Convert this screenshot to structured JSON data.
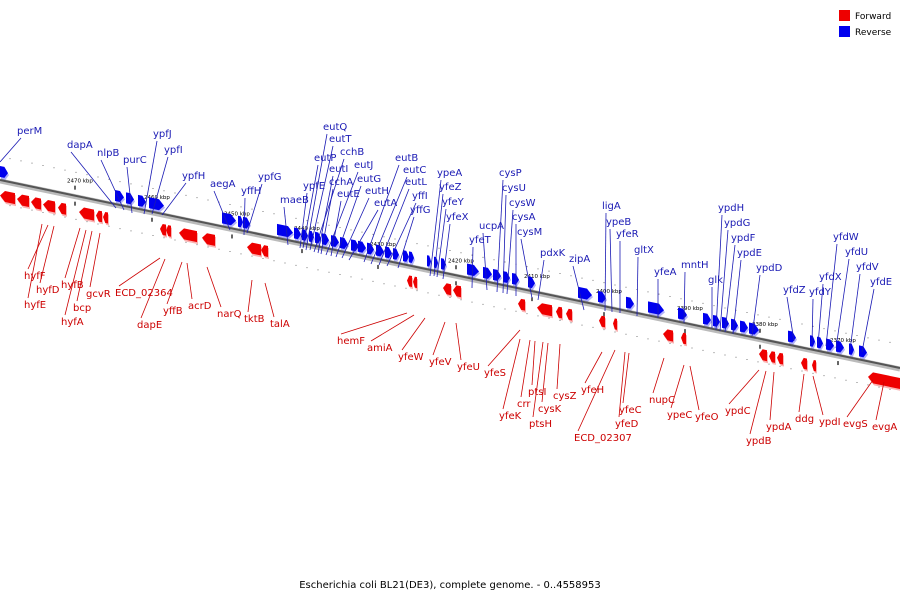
{
  "caption": "Escherichia coli BL21(DE3), complete genome. - 0..4558953",
  "legend": [
    {
      "label": "Forward",
      "color": "#ee0000"
    },
    {
      "label": "Reverse",
      "color": "#0000ee"
    }
  ],
  "colors": {
    "forward": "#ee0000",
    "reverse": "#0000ee",
    "forward_label": "#cc0000",
    "reverse_label": "#1a1ab4"
  },
  "chart_data": {
    "type": "genome-map",
    "ticks": [
      "2470 kbp",
      "2460 kbp",
      "2450 kbp",
      "2440 kbp",
      "2430 kbp",
      "2420 kbp",
      "2410 kbp",
      "2400 kbp",
      "2390 kbp",
      "2380 kbp",
      "2370 kbp"
    ],
    "reverse_genes": [
      "perM",
      "dapA",
      "nlpB",
      "purC",
      "ypfJ",
      "ypfI",
      "ypfH",
      "aegA",
      "yffH",
      "ypfG",
      "maeB",
      "ypfE",
      "eutP",
      "eutQ",
      "eutT",
      "cchB",
      "eutI",
      "cchA",
      "eutJ",
      "eutE",
      "eutG",
      "eutH",
      "eutA",
      "eutB",
      "eutC",
      "eutL",
      "yffI",
      "yffG",
      "ypeA",
      "yfeZ",
      "yfeY",
      "yfeX",
      "yfeT",
      "ucpA",
      "cysP",
      "cysU",
      "cysW",
      "cysA",
      "cysM",
      "pdxK",
      "zipA",
      "ligA",
      "ypeB",
      "yfeR",
      "gltX",
      "yfeA",
      "mntH",
      "glk",
      "ypdH",
      "ypdG",
      "ypdF",
      "ypdE",
      "ypdD",
      "yfdZ",
      "yfdY",
      "yfdX",
      "yfdW",
      "yfdU",
      "yfdV",
      "yfdE"
    ],
    "forward_genes": [
      "hyfF",
      "hyfD",
      "hyfE",
      "hyfB",
      "bcp",
      "hyfA",
      "gcvR",
      "ECD_02364",
      "dapE",
      "yffB",
      "acrD",
      "narQ",
      "tktB",
      "talA",
      "hemF",
      "amiA",
      "yfeW",
      "yfeV",
      "yfeU",
      "yfeS",
      "yfeK",
      "crr",
      "ptsI",
      "ptsH",
      "cysK",
      "cysZ",
      "yfeH",
      "ECD_02307",
      "yfeD",
      "yfeC",
      "nupC",
      "ypeC",
      "yfeO",
      "ypdC",
      "ypdB",
      "ypdA",
      "ddg",
      "ypdI",
      "evgS",
      "evgA"
    ]
  }
}
